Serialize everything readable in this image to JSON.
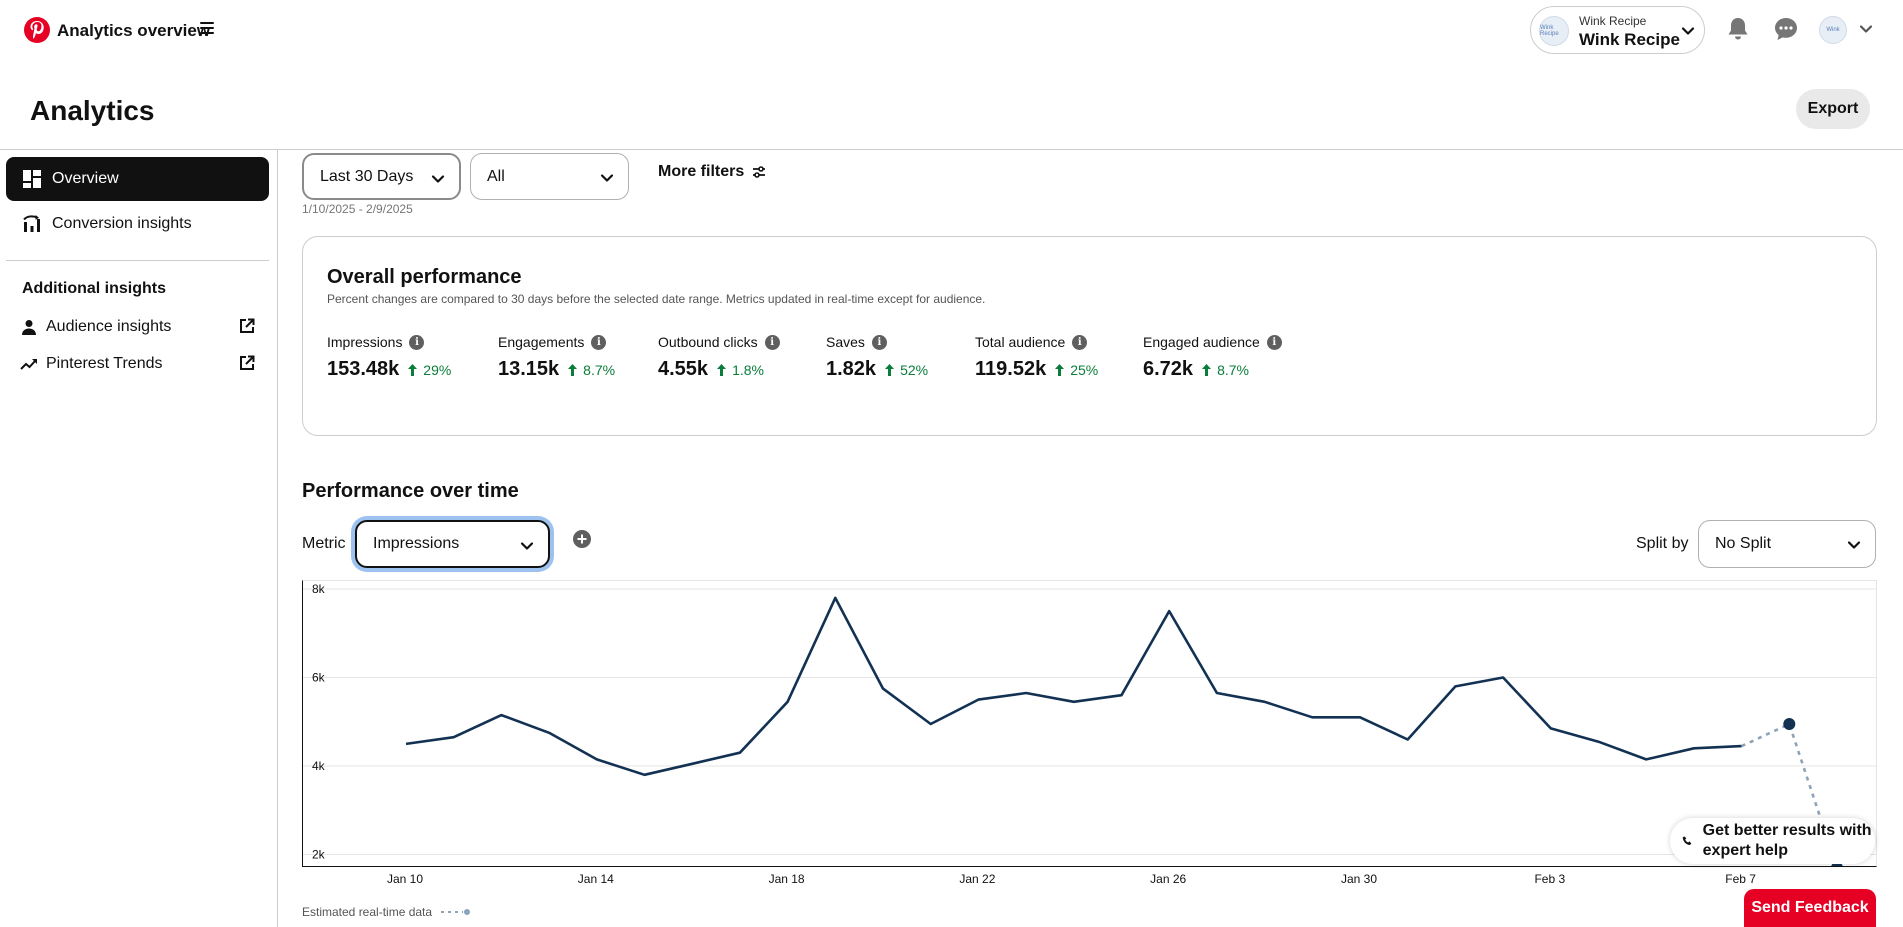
{
  "header": {
    "app_title": "Analytics overview",
    "account": {
      "small_name": "Wink Recipe",
      "name": "Wink Recipe",
      "avatar_text": "Wink Recipe"
    },
    "user_avatar_text": "Wink",
    "icons": [
      "pinterest-logo-icon",
      "menu-icon",
      "chevron-down-icon",
      "bell-icon",
      "chat-icon"
    ]
  },
  "page": {
    "title": "Analytics",
    "export_label": "Export"
  },
  "sidebar": {
    "items": [
      {
        "label": "Overview",
        "icon": "grid-icon",
        "active": true
      },
      {
        "label": "Conversion insights",
        "icon": "conversion-icon",
        "active": false
      }
    ],
    "additional_heading": "Additional insights",
    "links": [
      {
        "label": "Audience insights",
        "icon": "person-icon"
      },
      {
        "label": "Pinterest Trends",
        "icon": "trend-icon"
      }
    ]
  },
  "filters": {
    "date_select": "Last 30 Days",
    "type_select": "All",
    "more_filters": "More filters",
    "date_range": "1/10/2025 - 2/9/2025"
  },
  "overall": {
    "title": "Overall performance",
    "subtitle": "Percent changes are compared to 30 days before the selected date range. Metrics updated in real-time except for audience.",
    "metrics": [
      {
        "label": "Impressions",
        "value": "153.48k",
        "change": "29%"
      },
      {
        "label": "Engagements",
        "value": "13.15k",
        "change": "8.7%"
      },
      {
        "label": "Outbound clicks",
        "value": "4.55k",
        "change": "1.8%"
      },
      {
        "label": "Saves",
        "value": "1.82k",
        "change": "52%"
      },
      {
        "label": "Total audience",
        "value": "119.52k",
        "change": "25%"
      },
      {
        "label": "Engaged audience",
        "value": "6.72k",
        "change": "8.7%"
      }
    ],
    "positive_color": "#0a7d3b"
  },
  "over_time": {
    "title": "Performance over time",
    "metric_label": "Metric",
    "metric_value": "Impressions",
    "split_label": "Split by",
    "split_value": "No Split",
    "legend_label": "Estimated real-time data"
  },
  "chart_data": {
    "type": "line",
    "x": [
      "Jan 10",
      "Jan 11",
      "Jan 12",
      "Jan 13",
      "Jan 14",
      "Jan 15",
      "Jan 16",
      "Jan 17",
      "Jan 18",
      "Jan 19",
      "Jan 20",
      "Jan 21",
      "Jan 22",
      "Jan 23",
      "Jan 24",
      "Jan 25",
      "Jan 26",
      "Jan 27",
      "Jan 28",
      "Jan 29",
      "Jan 30",
      "Jan 31",
      "Feb 1",
      "Feb 2",
      "Feb 3",
      "Feb 4",
      "Feb 5",
      "Feb 6",
      "Feb 7",
      "Feb 8",
      "Feb 9"
    ],
    "values": [
      4500,
      4650,
      5150,
      4750,
      4150,
      3800,
      4050,
      4300,
      5450,
      7800,
      5750,
      4950,
      5500,
      5650,
      5450,
      5600,
      7500,
      5650,
      5450,
      5100,
      5100,
      4600,
      5800,
      6000,
      4850,
      4550,
      4150,
      4400,
      4450,
      4950,
      1700
    ],
    "estimated_from_index": 28,
    "x_ticks": [
      "Jan 10",
      "Jan 14",
      "Jan 18",
      "Jan 22",
      "Jan 26",
      "Jan 30",
      "Feb 3",
      "Feb 7"
    ],
    "y_ticks": [
      "2k",
      "4k",
      "6k",
      "8k"
    ],
    "ylim": [
      0,
      8000
    ],
    "grid": true,
    "line_color": "#133253",
    "estimated_color": "#8ea3b8"
  },
  "expert_help": {
    "label": "Get better results with expert help",
    "icon": "phone-icon"
  },
  "feedback": {
    "label": "Send Feedback",
    "color": "#e60023"
  }
}
